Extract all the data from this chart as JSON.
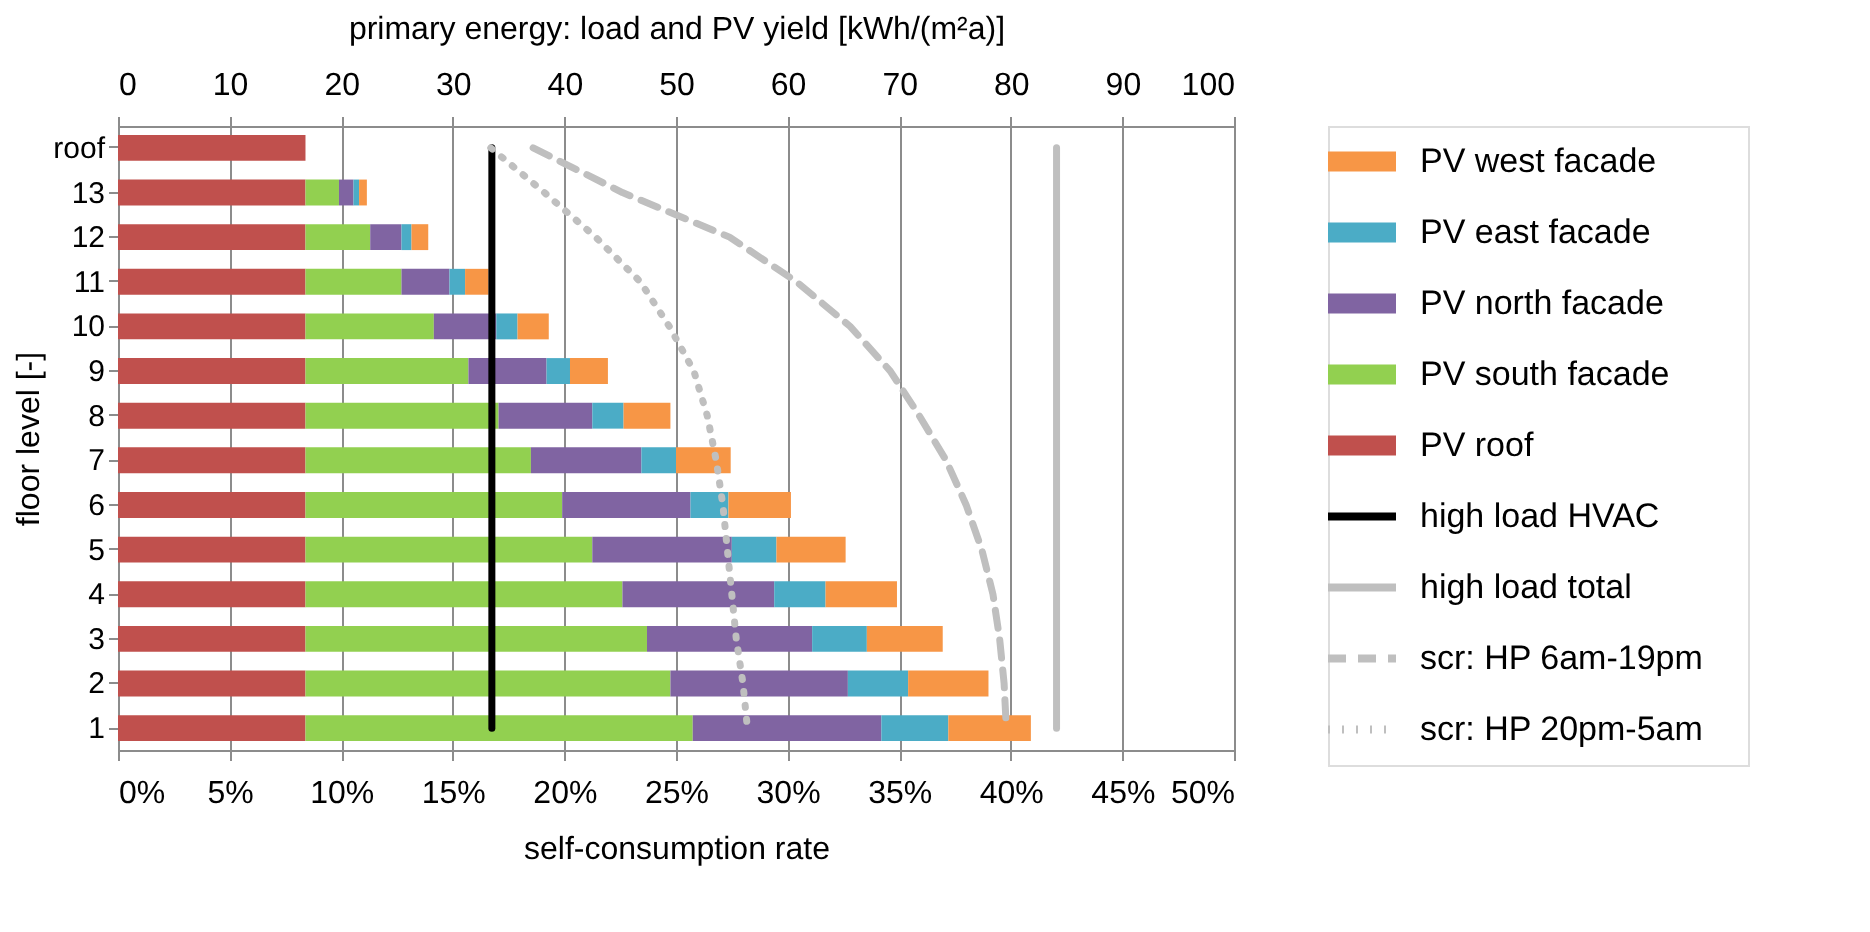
{
  "chart_data": {
    "type": "bar",
    "orientation": "horizontal",
    "stacked": true,
    "xlabel": "primary energy: load and PV yield [kWh/(m²a)]",
    "x2label": "self-consumption rate",
    "ylabel": "floor level  [-]",
    "categories": [
      "roof",
      "13",
      "12",
      "11",
      "10",
      "9",
      "8",
      "7",
      "6",
      "5",
      "4",
      "3",
      "2",
      "1"
    ],
    "xlim": [
      0,
      100
    ],
    "xticks": [
      0,
      10,
      20,
      30,
      40,
      50,
      60,
      70,
      80,
      90,
      100
    ],
    "x2lim": [
      0,
      50
    ],
    "x2ticks": [
      {
        "value": 0,
        "label": "0%"
      },
      {
        "value": 5,
        "label": "5%"
      },
      {
        "value": 10,
        "label": "10%"
      },
      {
        "value": 15,
        "label": "15%"
      },
      {
        "value": 20,
        "label": "20%"
      },
      {
        "value": 25,
        "label": "25%"
      },
      {
        "value": 30,
        "label": "30%"
      },
      {
        "value": 35,
        "label": "35%"
      },
      {
        "value": 40,
        "label": "40%"
      },
      {
        "value": 45,
        "label": "45%"
      },
      {
        "value": 50,
        "label": "50%"
      }
    ],
    "grid": "x",
    "legend": "right",
    "series": [
      {
        "name": "PV roof",
        "color": "#c0504d",
        "values": [
          16.8,
          16.8,
          16.8,
          16.8,
          16.8,
          16.8,
          16.8,
          16.8,
          16.8,
          16.8,
          16.8,
          16.8,
          16.8,
          16.8
        ]
      },
      {
        "name": "PV south facade",
        "color": "#92d050",
        "values": [
          null,
          3.0,
          5.8,
          8.6,
          11.5,
          14.6,
          17.3,
          20.2,
          23.0,
          25.7,
          28.4,
          30.6,
          32.7,
          34.7
        ]
      },
      {
        "name": "PV north facade",
        "color": "#8064a2",
        "values": [
          null,
          1.3,
          2.8,
          4.3,
          5.6,
          7.0,
          8.4,
          9.9,
          11.5,
          12.5,
          13.6,
          14.8,
          15.9,
          16.9
        ]
      },
      {
        "name": "PV east facade",
        "color": "#4bacc6",
        "values": [
          null,
          0.5,
          0.9,
          1.4,
          1.9,
          2.1,
          2.8,
          3.1,
          3.4,
          4.0,
          4.6,
          4.9,
          5.4,
          6.0
        ]
      },
      {
        "name": "PV west facade",
        "color": "#f79646",
        "values": [
          null,
          0.7,
          1.5,
          2.1,
          2.8,
          3.4,
          4.2,
          4.9,
          5.6,
          6.2,
          6.4,
          6.8,
          7.2,
          7.4
        ]
      },
      {
        "name": "high load HVAC",
        "type": "line",
        "color": "#000000",
        "line_style": "solid",
        "values": [
          33.5,
          33.5,
          33.5,
          33.5,
          33.5,
          33.5,
          33.5,
          33.5,
          33.5,
          33.5,
          33.5,
          33.5,
          33.5,
          33.5
        ]
      },
      {
        "name": "high load total",
        "type": "line",
        "color": "#bfbfbf",
        "line_style": "solid",
        "values": [
          84.1,
          84.1,
          84.1,
          84.1,
          84.1,
          84.1,
          84.1,
          84.1,
          84.1,
          84.1,
          84.1,
          84.1,
          84.1,
          84.1
        ]
      },
      {
        "name": "scr: HP 6am-19pm",
        "type": "line",
        "color": "#bfbfbf",
        "axis": "x2",
        "line_style": "dashed",
        "values": [
          18.6,
          22.6,
          27.4,
          30.4,
          32.8,
          34.6,
          35.9,
          37.1,
          38.0,
          38.7,
          39.2,
          39.5,
          39.7,
          39.8
        ]
      },
      {
        "name": "scr: HP 20pm-5am",
        "type": "line",
        "color": "#bfbfbf",
        "axis": "x2",
        "line_style": "dotted",
        "values": [
          16.7,
          19.1,
          21.4,
          23.4,
          24.7,
          25.8,
          26.4,
          26.8,
          27.1,
          27.3,
          27.5,
          27.7,
          28.0,
          28.2
        ]
      }
    ]
  }
}
